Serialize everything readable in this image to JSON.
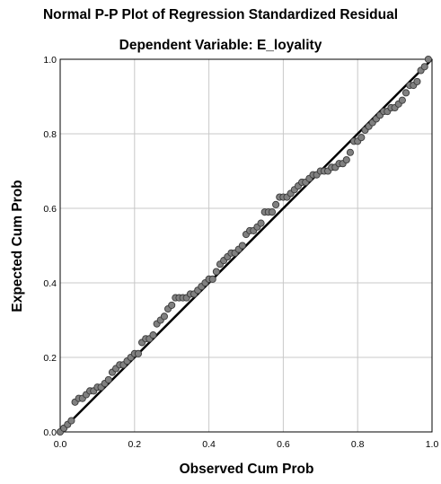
{
  "chart_data": {
    "type": "scatter",
    "title": "Normal P-P Plot of Regression Standardized Residual",
    "subtitle": "Dependent Variable: E_loyality",
    "xlabel": "Observed Cum Prob",
    "ylabel": "Expected Cum Prob",
    "xlim": [
      0,
      1
    ],
    "ylim": [
      0,
      1
    ],
    "xticks": [
      "0.0",
      "0.2",
      "0.4",
      "0.6",
      "0.8",
      "1.0"
    ],
    "yticks": [
      "0.0",
      "0.2",
      "0.4",
      "0.6",
      "0.8",
      "1.0"
    ],
    "grid": true,
    "reference_line": {
      "from": [
        0,
        0
      ],
      "to": [
        1,
        1
      ]
    },
    "colors": {
      "point_fill": "#808080",
      "point_stroke": "#3a3a3a",
      "reference_line": "#000000",
      "grid": "#c8c8c8",
      "axis": "#000000"
    },
    "points": [
      [
        0.0,
        0.0
      ],
      [
        0.01,
        0.01
      ],
      [
        0.02,
        0.02
      ],
      [
        0.03,
        0.03
      ],
      [
        0.04,
        0.08
      ],
      [
        0.05,
        0.09
      ],
      [
        0.06,
        0.09
      ],
      [
        0.07,
        0.1
      ],
      [
        0.08,
        0.11
      ],
      [
        0.09,
        0.11
      ],
      [
        0.1,
        0.12
      ],
      [
        0.11,
        0.12
      ],
      [
        0.12,
        0.13
      ],
      [
        0.13,
        0.14
      ],
      [
        0.14,
        0.16
      ],
      [
        0.15,
        0.17
      ],
      [
        0.16,
        0.18
      ],
      [
        0.17,
        0.18
      ],
      [
        0.18,
        0.19
      ],
      [
        0.19,
        0.2
      ],
      [
        0.2,
        0.21
      ],
      [
        0.21,
        0.21
      ],
      [
        0.22,
        0.24
      ],
      [
        0.23,
        0.25
      ],
      [
        0.24,
        0.25
      ],
      [
        0.25,
        0.26
      ],
      [
        0.26,
        0.29
      ],
      [
        0.27,
        0.3
      ],
      [
        0.28,
        0.31
      ],
      [
        0.29,
        0.33
      ],
      [
        0.3,
        0.34
      ],
      [
        0.31,
        0.36
      ],
      [
        0.32,
        0.36
      ],
      [
        0.33,
        0.36
      ],
      [
        0.34,
        0.36
      ],
      [
        0.35,
        0.37
      ],
      [
        0.36,
        0.37
      ],
      [
        0.37,
        0.38
      ],
      [
        0.38,
        0.39
      ],
      [
        0.39,
        0.4
      ],
      [
        0.4,
        0.41
      ],
      [
        0.41,
        0.41
      ],
      [
        0.42,
        0.43
      ],
      [
        0.43,
        0.45
      ],
      [
        0.44,
        0.46
      ],
      [
        0.45,
        0.47
      ],
      [
        0.46,
        0.48
      ],
      [
        0.47,
        0.48
      ],
      [
        0.48,
        0.49
      ],
      [
        0.49,
        0.5
      ],
      [
        0.5,
        0.53
      ],
      [
        0.51,
        0.54
      ],
      [
        0.52,
        0.54
      ],
      [
        0.53,
        0.55
      ],
      [
        0.54,
        0.56
      ],
      [
        0.55,
        0.59
      ],
      [
        0.56,
        0.59
      ],
      [
        0.57,
        0.59
      ],
      [
        0.58,
        0.61
      ],
      [
        0.59,
        0.63
      ],
      [
        0.6,
        0.63
      ],
      [
        0.61,
        0.63
      ],
      [
        0.62,
        0.64
      ],
      [
        0.63,
        0.65
      ],
      [
        0.64,
        0.66
      ],
      [
        0.65,
        0.67
      ],
      [
        0.66,
        0.67
      ],
      [
        0.67,
        0.68
      ],
      [
        0.68,
        0.69
      ],
      [
        0.69,
        0.69
      ],
      [
        0.7,
        0.7
      ],
      [
        0.71,
        0.7
      ],
      [
        0.72,
        0.7
      ],
      [
        0.73,
        0.71
      ],
      [
        0.74,
        0.71
      ],
      [
        0.75,
        0.72
      ],
      [
        0.76,
        0.72
      ],
      [
        0.77,
        0.73
      ],
      [
        0.78,
        0.75
      ],
      [
        0.79,
        0.78
      ],
      [
        0.8,
        0.78
      ],
      [
        0.81,
        0.79
      ],
      [
        0.82,
        0.81
      ],
      [
        0.83,
        0.82
      ],
      [
        0.84,
        0.83
      ],
      [
        0.85,
        0.84
      ],
      [
        0.86,
        0.85
      ],
      [
        0.87,
        0.86
      ],
      [
        0.88,
        0.86
      ],
      [
        0.89,
        0.87
      ],
      [
        0.9,
        0.87
      ],
      [
        0.91,
        0.88
      ],
      [
        0.92,
        0.89
      ],
      [
        0.93,
        0.91
      ],
      [
        0.94,
        0.93
      ],
      [
        0.95,
        0.93
      ],
      [
        0.96,
        0.94
      ],
      [
        0.97,
        0.97
      ],
      [
        0.98,
        0.98
      ],
      [
        0.99,
        1.0
      ]
    ]
  }
}
